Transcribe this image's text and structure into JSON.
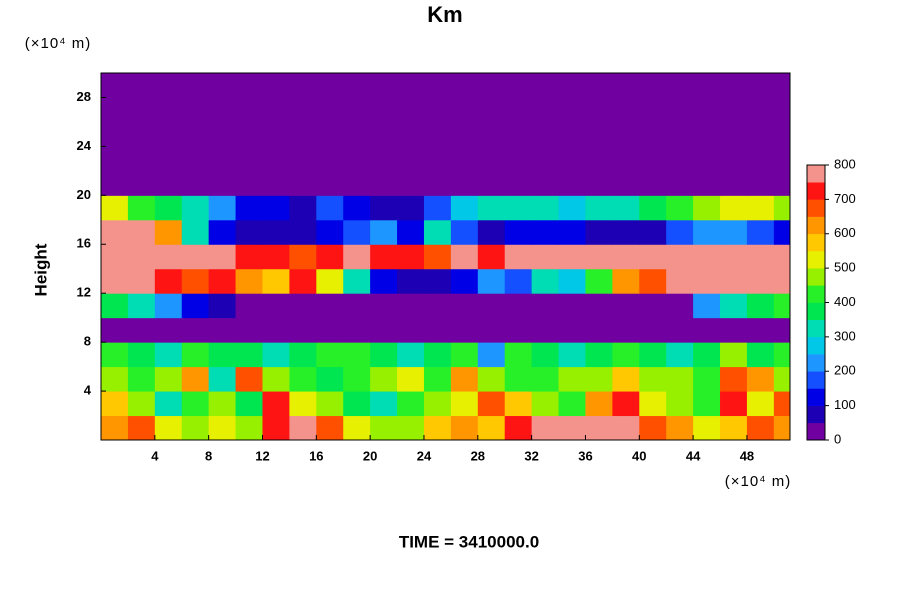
{
  "chart_data": {
    "type": "heatmap",
    "title": "Km",
    "y_unit_label": "(×10⁴ m)",
    "x_unit_label": "(×10⁴ m)",
    "ylabel": "Height",
    "footer": "TIME = 3410000.0",
    "xlim": [
      0,
      51.2
    ],
    "ylim": [
      0,
      30
    ],
    "xticks": [
      4,
      8,
      12,
      16,
      20,
      24,
      28,
      32,
      36,
      40,
      44,
      48
    ],
    "yticks": [
      4,
      8,
      12,
      16,
      20,
      24,
      28
    ],
    "zlim": [
      0,
      800
    ],
    "zticks": [
      0,
      100,
      200,
      300,
      400,
      500,
      600,
      700,
      800
    ],
    "colors": [
      "#7000a0",
      "#1e00b4",
      "#0000e6",
      "#1450ff",
      "#1e96ff",
      "#00c8e6",
      "#00dcb4",
      "#00e650",
      "#28f028",
      "#96f000",
      "#e6f000",
      "#ffc800",
      "#ff9600",
      "#ff5000",
      "#ff1414",
      "#f4938c"
    ],
    "xbins": [
      0,
      2,
      4,
      6,
      8,
      10,
      12,
      14,
      16,
      18,
      20,
      22,
      24,
      26,
      28,
      30,
      32,
      34,
      36,
      38,
      40,
      42,
      44,
      46,
      48,
      50,
      51.2
    ],
    "ybins": [
      0,
      2,
      4,
      6,
      8,
      10,
      12,
      14,
      16,
      18,
      20,
      22,
      24,
      26,
      28,
      30
    ],
    "z": [
      [
        600,
        650,
        500,
        450,
        500,
        450,
        700,
        750,
        650,
        500,
        450,
        450,
        550,
        600,
        550,
        700,
        750,
        780,
        790,
        780,
        650,
        600,
        500,
        550,
        650,
        600
      ],
      [
        550,
        450,
        300,
        400,
        450,
        350,
        700,
        500,
        450,
        350,
        300,
        400,
        450,
        500,
        650,
        550,
        450,
        400,
        600,
        700,
        500,
        450,
        400,
        700,
        500,
        650
      ],
      [
        450,
        400,
        450,
        600,
        300,
        650,
        450,
        400,
        350,
        400,
        450,
        500,
        400,
        600,
        450,
        400,
        400,
        450,
        450,
        550,
        450,
        450,
        400,
        650,
        600,
        450
      ],
      [
        400,
        350,
        300,
        400,
        350,
        350,
        300,
        350,
        400,
        400,
        350,
        300,
        350,
        400,
        200,
        400,
        350,
        300,
        350,
        400,
        350,
        300,
        350,
        450,
        350,
        400
      ],
      [
        0,
        0,
        0,
        0,
        0,
        0,
        0,
        0,
        0,
        0,
        0,
        0,
        0,
        0,
        0,
        0,
        0,
        0,
        0,
        0,
        0,
        0,
        0,
        0,
        0,
        0
      ],
      [
        350,
        300,
        200,
        100,
        50,
        0,
        0,
        0,
        0,
        0,
        0,
        0,
        0,
        0,
        0,
        0,
        0,
        0,
        0,
        0,
        0,
        0,
        200,
        300,
        350,
        400
      ],
      [
        780,
        750,
        700,
        650,
        720,
        600,
        550,
        700,
        500,
        300,
        100,
        50,
        50,
        100,
        200,
        150,
        300,
        250,
        400,
        600,
        650,
        750,
        780,
        780,
        780,
        780
      ],
      [
        780,
        780,
        780,
        780,
        750,
        700,
        720,
        680,
        700,
        750,
        700,
        720,
        650,
        780,
        700,
        750,
        780,
        780,
        780,
        780,
        780,
        780,
        780,
        780,
        780,
        750
      ],
      [
        780,
        750,
        600,
        300,
        100,
        50,
        50,
        50,
        100,
        150,
        200,
        100,
        300,
        150,
        50,
        100,
        100,
        100,
        50,
        50,
        50,
        150,
        200,
        200,
        150,
        100
      ],
      [
        500,
        400,
        350,
        300,
        200,
        100,
        100,
        50,
        150,
        100,
        50,
        50,
        150,
        250,
        300,
        300,
        300,
        250,
        300,
        300,
        350,
        400,
        450,
        500,
        500,
        450
      ],
      [
        0,
        0,
        0,
        0,
        0,
        0,
        0,
        0,
        0,
        0,
        0,
        0,
        0,
        0,
        0,
        0,
        0,
        0,
        0,
        0,
        0,
        0,
        0,
        0,
        0,
        0
      ],
      [
        0,
        0,
        0,
        0,
        0,
        0,
        0,
        0,
        0,
        0,
        0,
        0,
        0,
        0,
        0,
        0,
        0,
        0,
        0,
        0,
        0,
        0,
        0,
        0,
        0,
        0
      ],
      [
        0,
        0,
        0,
        0,
        0,
        0,
        0,
        0,
        0,
        0,
        0,
        0,
        0,
        0,
        0,
        0,
        0,
        0,
        0,
        0,
        0,
        0,
        0,
        0,
        0,
        0
      ],
      [
        0,
        0,
        0,
        0,
        0,
        0,
        0,
        0,
        0,
        0,
        0,
        0,
        0,
        0,
        0,
        0,
        0,
        0,
        0,
        0,
        0,
        0,
        0,
        0,
        0,
        0
      ],
      [
        0,
        0,
        0,
        0,
        0,
        0,
        0,
        0,
        0,
        0,
        0,
        0,
        0,
        0,
        0,
        0,
        0,
        0,
        0,
        0,
        0,
        0,
        0,
        0,
        0,
        0
      ]
    ]
  }
}
